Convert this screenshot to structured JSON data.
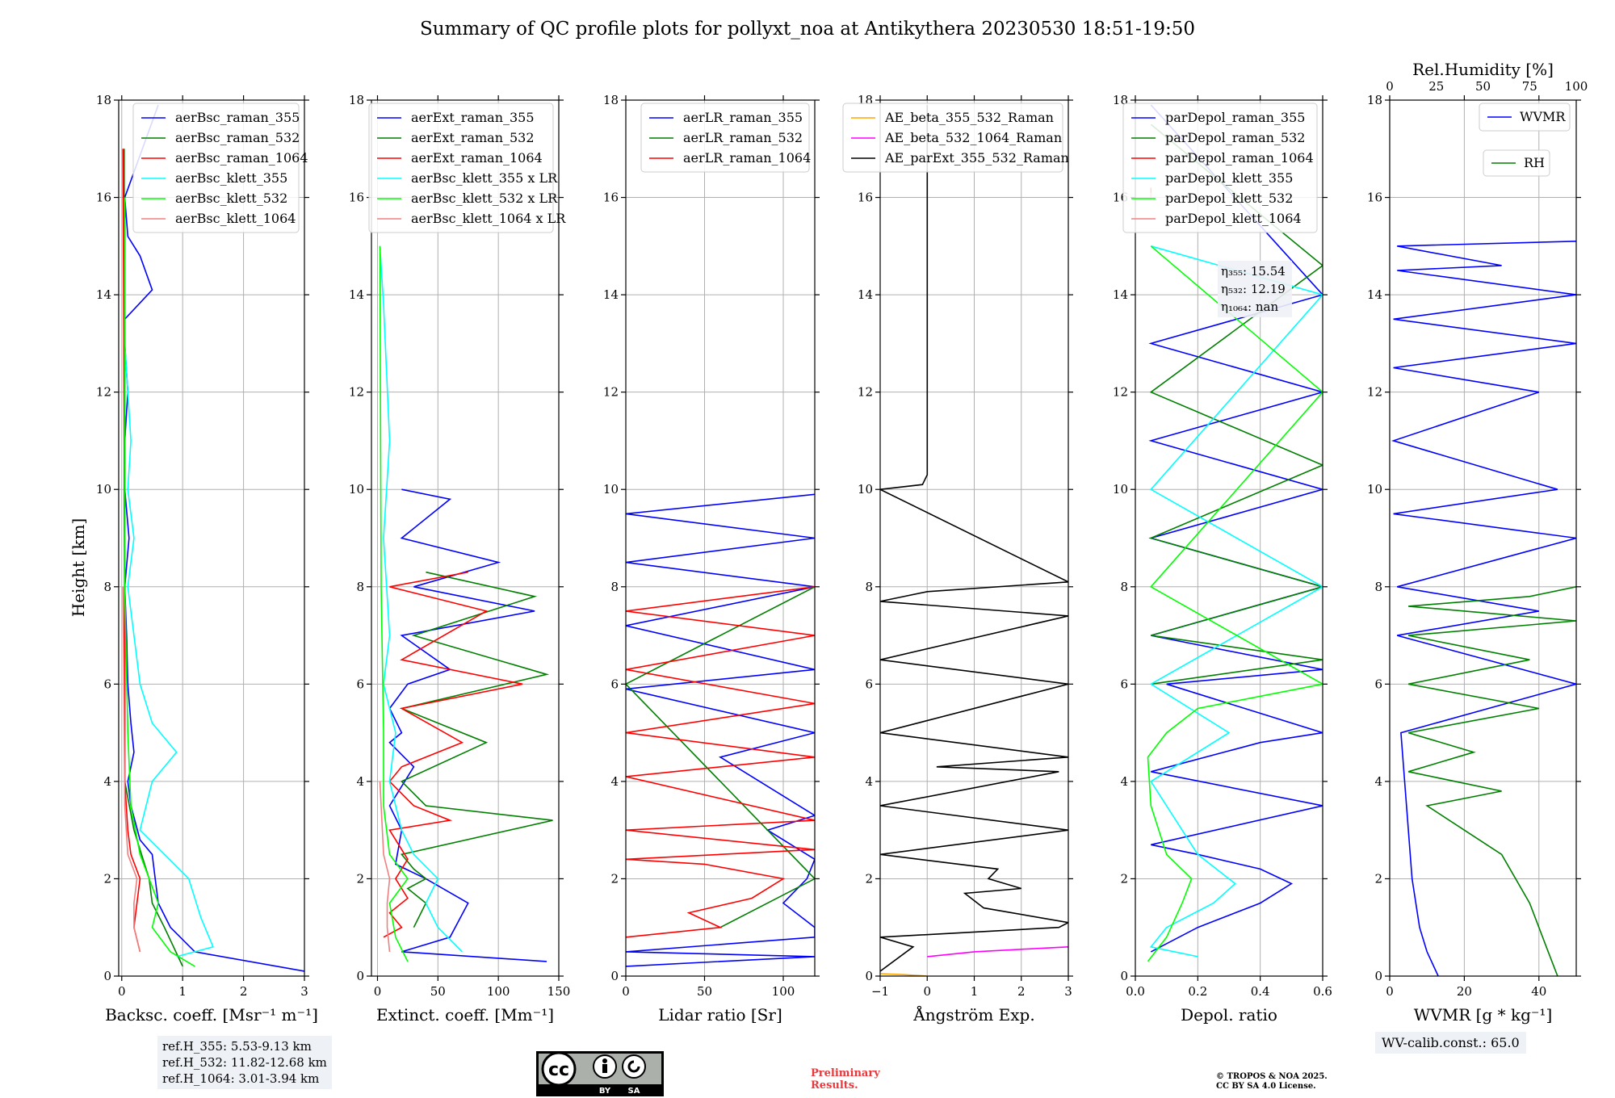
{
  "title": "Summary of QC profile plots for pollyxt_noa at Antikythera 20230530 18:51-19:50",
  "y_label": "Height [km]",
  "y_range": [
    0,
    18
  ],
  "y_ticks": [
    "0",
    "2",
    "4",
    "6",
    "8",
    "10",
    "12",
    "14",
    "16",
    "18"
  ],
  "colors": {
    "blue": "#0000ff",
    "green": "#007f00",
    "red": "#ff0000",
    "cyan": "#00ffff",
    "lime": "#00ff00",
    "salmon": "#f08080",
    "orange": "#ffa500",
    "magenta": "#ff00ff",
    "black": "#000000",
    "rh_green": "#008000"
  },
  "chart_data": [
    {
      "type": "line",
      "xlabel": "Backsc. coeff. [Msr⁻¹ m⁻¹]",
      "xlim": [
        -0.05,
        3
      ],
      "xticks": [
        0,
        1,
        2,
        3
      ],
      "xticklabels": [
        "0",
        "1",
        "2",
        "3"
      ],
      "legend": "top-right",
      "series": [
        {
          "name": "aerBsc_raman_355",
          "color": "#0000ff",
          "x": [
            3.0,
            1.2,
            0.8,
            0.6,
            0.55,
            0.5,
            0.3,
            0.15,
            0.1,
            0.2,
            0.15,
            0.1,
            0.08,
            0.05,
            0.12,
            0.05,
            0.05,
            0.1,
            0.05,
            0.05,
            0.5,
            0.3,
            0.1,
            0.05,
            0.6
          ],
          "y": [
            0.1,
            0.5,
            1.0,
            1.5,
            2.0,
            2.5,
            2.8,
            3.5,
            4.0,
            4.6,
            5.2,
            6.0,
            7.0,
            8.0,
            9.0,
            10.0,
            11.0,
            12.0,
            13.0,
            13.5,
            14.1,
            14.8,
            15.2,
            16.0,
            17.9
          ]
        },
        {
          "name": "aerBsc_raman_532",
          "color": "#007f00",
          "x": [
            1.0,
            0.7,
            0.5,
            0.45,
            0.3,
            0.2,
            0.05,
            0.05,
            0.04,
            0.04
          ],
          "y": [
            0.2,
            1.0,
            1.5,
            2.0,
            2.6,
            3.0,
            4.0,
            6.0,
            10.0,
            17.0
          ]
        },
        {
          "name": "aerBsc_raman_1064",
          "color": "#ff0000",
          "x": [
            0.3,
            0.2,
            0.25,
            0.3,
            0.15,
            0.1,
            0.05,
            0.05,
            0.02
          ],
          "y": [
            0.5,
            1.0,
            1.5,
            2.0,
            2.5,
            3.0,
            4.0,
            8.0,
            17.0
          ]
        },
        {
          "name": "aerBsc_klett_355",
          "color": "#00ffff",
          "x": [
            0.9,
            1.5,
            1.3,
            1.1,
            0.7,
            0.3,
            0.5,
            0.9,
            0.5,
            0.3,
            0.2,
            0.1,
            0.2,
            0.1,
            0.15,
            0.05,
            0.05
          ],
          "y": [
            0.4,
            0.6,
            1.2,
            2.0,
            2.5,
            3.0,
            4.0,
            4.6,
            5.2,
            6.0,
            7.0,
            8.0,
            9.0,
            10.0,
            11.0,
            13.0,
            16.0
          ]
        },
        {
          "name": "aerBsc_klett_532",
          "color": "#00ff00",
          "x": [
            1.2,
            0.8,
            0.5,
            0.6,
            0.45,
            0.3,
            0.15,
            0.1,
            0.05,
            0.05
          ],
          "y": [
            0.2,
            0.5,
            1.0,
            1.5,
            2.0,
            2.5,
            3.5,
            5.0,
            8.0,
            16.0
          ]
        },
        {
          "name": "aerBsc_klett_1064",
          "color": "#f08080",
          "x": [
            0.3,
            0.2,
            0.2,
            0.25,
            0.1,
            0.05,
            0.02
          ],
          "y": [
            0.5,
            1.0,
            1.5,
            2.0,
            2.5,
            3.5,
            8.0
          ]
        }
      ]
    },
    {
      "type": "line",
      "xlabel": "Extinct. coeff. [Mm⁻¹]",
      "xlim": [
        -5,
        150
      ],
      "xticks": [
        0,
        50,
        100,
        150
      ],
      "xticklabels": [
        "0",
        "50",
        "100",
        "150"
      ],
      "legend": "top-right",
      "series": [
        {
          "name": "aerExt_raman_355",
          "color": "#0000ff",
          "x": [
            140,
            20,
            60,
            75,
            40,
            15,
            20,
            10,
            30,
            10,
            20,
            10,
            25,
            60,
            20,
            130,
            30,
            100,
            20,
            60,
            20
          ],
          "y": [
            0.3,
            0.5,
            0.8,
            1.5,
            2.0,
            2.3,
            3.0,
            3.5,
            4.3,
            4.8,
            5.0,
            5.5,
            6.0,
            6.3,
            7.0,
            7.5,
            8.0,
            8.5,
            9.0,
            9.8,
            10.0
          ]
        },
        {
          "name": "aerExt_raman_532",
          "color": "#007f00",
          "x": [
            30,
            40,
            25,
            40,
            30,
            20,
            145,
            40,
            20,
            90,
            20,
            140,
            30,
            130,
            40
          ],
          "y": [
            1.0,
            1.5,
            1.8,
            2.0,
            2.2,
            2.5,
            3.2,
            3.5,
            4.0,
            4.8,
            5.5,
            6.2,
            7.0,
            7.8,
            8.3
          ]
        },
        {
          "name": "aerExt_raman_1064",
          "color": "#ff0000",
          "x": [
            5,
            20,
            10,
            25,
            15,
            25,
            10,
            60,
            30,
            10,
            20,
            70,
            20,
            120,
            20,
            90,
            10,
            75
          ],
          "y": [
            0.8,
            1.0,
            1.3,
            1.6,
            2.0,
            2.4,
            3.0,
            3.2,
            3.5,
            4.0,
            4.3,
            4.8,
            5.5,
            6.0,
            6.5,
            7.5,
            8.0,
            8.3
          ]
        },
        {
          "name": "aerBsc_klett_355 x LR",
          "color": "#00ffff",
          "x": [
            70,
            50,
            40,
            50,
            30,
            20,
            10,
            15,
            5,
            10,
            5,
            10,
            5,
            2
          ],
          "y": [
            0.5,
            1.0,
            1.5,
            2.0,
            2.5,
            3.0,
            4.0,
            5.0,
            6.0,
            7.0,
            9.0,
            11.0,
            13.8,
            15.0
          ]
        },
        {
          "name": "aerBsc_klett_532 x LR",
          "color": "#00ff00",
          "x": [
            25,
            15,
            10,
            25,
            10,
            5,
            5,
            3,
            2
          ],
          "y": [
            0.3,
            0.8,
            1.5,
            2.0,
            2.5,
            3.5,
            5.0,
            8.0,
            15.0
          ]
        },
        {
          "name": "aerBsc_klett_1064 x LR",
          "color": "#f08080",
          "x": [
            10,
            8,
            8,
            10,
            5,
            2
          ],
          "y": [
            0.5,
            1.0,
            1.5,
            2.0,
            2.5,
            4.0
          ]
        }
      ]
    },
    {
      "type": "line",
      "xlabel": "Lidar ratio [Sr]",
      "xlim": [
        0,
        120
      ],
      "xticks": [
        0,
        50,
        100
      ],
      "xticklabels": [
        "0",
        "50",
        "100"
      ],
      "legend": "top-right",
      "series": [
        {
          "name": "aerLR_raman_355",
          "color": "#0000ff",
          "x": [
            0,
            120,
            0,
            120,
            120,
            100,
            115,
            120,
            90,
            120,
            60,
            120,
            0,
            120,
            0,
            120,
            0,
            120,
            0,
            120
          ],
          "y": [
            0.2,
            0.4,
            0.5,
            0.8,
            1.0,
            1.5,
            2.0,
            2.4,
            3.0,
            3.3,
            4.5,
            5.0,
            5.9,
            6.3,
            7.2,
            8.0,
            8.5,
            9.0,
            9.5,
            9.9
          ]
        },
        {
          "name": "aerLR_raman_532",
          "color": "#007f00",
          "x": [
            60,
            90,
            120,
            0,
            120
          ],
          "y": [
            1.0,
            1.5,
            2.0,
            6.0,
            8.0
          ]
        },
        {
          "name": "aerLR_raman_1064",
          "color": "#ff0000",
          "x": [
            0,
            60,
            40,
            80,
            100,
            50,
            0,
            120,
            0,
            120,
            0,
            120,
            0,
            120,
            0,
            120,
            0,
            120
          ],
          "y": [
            0.8,
            1.0,
            1.3,
            1.6,
            2.0,
            2.3,
            2.4,
            2.6,
            3.0,
            3.2,
            4.1,
            4.5,
            5.0,
            5.6,
            6.3,
            7.0,
            7.5,
            8.0
          ]
        }
      ]
    },
    {
      "type": "line",
      "xlabel": "Ångström Exp.",
      "xlim": [
        -1,
        3
      ],
      "xticks": [
        -1,
        0,
        1,
        2,
        3
      ],
      "xticklabels": [
        "−1",
        "0",
        "1",
        "2",
        "3"
      ],
      "legend": "top-right",
      "series": [
        {
          "name": "AE_beta_355_532_Raman",
          "color": "#ffa500",
          "x": [
            -1.0,
            -0.5,
            0.0
          ],
          "y": [
            0.05,
            0.03,
            0.0
          ]
        },
        {
          "name": "AE_beta_532_1064_Raman",
          "color": "#ff00ff",
          "x": [
            0.0,
            1.0,
            2.0,
            3.0
          ],
          "y": [
            0.4,
            0.5,
            0.55,
            0.6
          ]
        },
        {
          "name": "AE_parExt_355_532_Raman",
          "color": "#000000",
          "x": [
            -1.0,
            -0.3,
            -1.0,
            2.8,
            3.0,
            1.2,
            0.8,
            2.0,
            1.3,
            1.5,
            -1.0,
            3.0,
            -1.0,
            2.8,
            0.2,
            3.0,
            -1.0,
            3.0,
            -1.0,
            3.0,
            -1.0,
            0.0,
            3.0,
            -1.0,
            -0.1,
            0.0,
            0.0
          ],
          "y": [
            0.1,
            0.6,
            0.8,
            1.0,
            1.1,
            1.4,
            1.7,
            1.8,
            2.0,
            2.2,
            2.5,
            3.0,
            3.5,
            4.2,
            4.3,
            4.5,
            5.0,
            6.0,
            6.5,
            7.4,
            7.7,
            7.9,
            8.1,
            10.0,
            10.1,
            10.3,
            17.9
          ]
        }
      ]
    },
    {
      "type": "line",
      "xlabel": "Depol. ratio",
      "xlim": [
        0,
        0.6
      ],
      "xticks": [
        0,
        0.2,
        0.4,
        0.6
      ],
      "xticklabels": [
        "0.0",
        "0.2",
        "0.4",
        "0.6"
      ],
      "legend": "top-right",
      "annotation": [
        "η₃₅₅: 15.54",
        "η₅₃₂: 12.19",
        "η₁₀₆₄: nan"
      ],
      "series": [
        {
          "name": "parDepol_raman_355",
          "color": "#0000ff",
          "x": [
            0.05,
            0.2,
            0.4,
            0.5,
            0.4,
            0.2,
            0.05,
            0.6,
            0.05,
            0.4,
            0.6,
            0.1,
            0.6,
            0.05,
            0.6,
            0.05,
            0.6,
            0.05,
            0.6,
            0.05,
            0.6,
            0.05
          ],
          "y": [
            0.5,
            1.0,
            1.5,
            1.9,
            2.2,
            2.5,
            2.7,
            3.5,
            4.2,
            4.8,
            5.0,
            6.0,
            6.3,
            7.0,
            8.0,
            9.0,
            10.0,
            11.0,
            12.0,
            13.0,
            14.0,
            17.9
          ]
        },
        {
          "name": "parDepol_raman_532",
          "color": "#007f00",
          "x": [
            0.05,
            0.6,
            0.05,
            0.6,
            0.05,
            0.6,
            0.05,
            0.6,
            0.05
          ],
          "y": [
            6.0,
            6.5,
            7.0,
            8.0,
            9.0,
            10.5,
            12.0,
            14.6,
            17.5
          ]
        },
        {
          "name": "parDepol_raman_1064",
          "color": "#ff0000",
          "x": [
            0.05,
            0.05
          ],
          "y": [
            16.0,
            16.2
          ]
        },
        {
          "name": "parDepol_klett_355",
          "color": "#00ffff",
          "x": [
            0.2,
            0.05,
            0.1,
            0.25,
            0.32,
            0.2,
            0.05,
            0.3,
            0.05,
            0.6,
            0.05,
            0.6,
            0.05
          ],
          "y": [
            0.4,
            0.6,
            1.0,
            1.5,
            1.9,
            2.5,
            4.0,
            5.0,
            6.0,
            8.0,
            10.0,
            14.0,
            15.0
          ]
        },
        {
          "name": "parDepol_klett_532",
          "color": "#00ff00",
          "x": [
            0.04,
            0.1,
            0.15,
            0.18,
            0.1,
            0.05,
            0.04,
            0.1,
            0.2,
            0.6,
            0.05,
            0.6,
            0.05
          ],
          "y": [
            0.3,
            0.8,
            1.5,
            2.0,
            2.5,
            3.5,
            4.5,
            5.0,
            5.5,
            6.0,
            8.0,
            12.0,
            15.0
          ]
        },
        {
          "name": "parDepol_klett_1064",
          "color": "#f08080",
          "x": [
            0.05,
            0.05
          ],
          "y": [
            16.0,
            16.1
          ]
        }
      ]
    },
    {
      "type": "line",
      "xlabel": "WVMR [g * kg⁻¹]",
      "xlim": [
        0,
        50
      ],
      "xticks": [
        0,
        20,
        40
      ],
      "xticklabels": [
        "0",
        "20",
        "40"
      ],
      "x2label": "Rel.Humidity [%]",
      "x2lim": [
        0,
        100
      ],
      "x2ticks": [
        0,
        25,
        50,
        75,
        100
      ],
      "x2ticklabels": [
        "0",
        "25",
        "50",
        "75",
        "100"
      ],
      "legend": "top-right",
      "annotation": [
        "WV-calib.const.: 65.0"
      ],
      "series": [
        {
          "name": "WVMR",
          "color": "#0000ff",
          "x": [
            13,
            10,
            8,
            6,
            5,
            4,
            3,
            50,
            2,
            40,
            2,
            50,
            1,
            45,
            1,
            40,
            1,
            50,
            1,
            50,
            2,
            30,
            2,
            50
          ],
          "y": [
            0.0,
            0.5,
            1.0,
            2.0,
            3.0,
            4.0,
            5.0,
            6.0,
            7.0,
            7.5,
            8.0,
            9.0,
            9.5,
            10.0,
            11.0,
            12.0,
            12.5,
            13.0,
            13.5,
            14.0,
            14.5,
            14.6,
            15.0,
            15.1
          ]
        },
        {
          "name": "RH",
          "color": "#008000",
          "x": [
            90,
            85,
            75,
            60,
            40,
            20,
            60,
            10,
            45,
            10,
            80,
            10,
            75,
            10,
            100,
            10,
            75,
            100
          ],
          "y": [
            0.0,
            0.5,
            1.5,
            2.5,
            3.0,
            3.5,
            3.8,
            4.2,
            4.6,
            5.0,
            5.5,
            6.0,
            6.5,
            7.0,
            7.3,
            7.6,
            7.8,
            8.0
          ]
        }
      ]
    }
  ],
  "ref_heights": [
    "ref.H_355: 5.53-9.13 km",
    "ref.H_532: 11.82-12.68 km",
    "ref.H_1064: 3.01-3.94 km"
  ],
  "wv_calib": "WV-calib.const.: 65.0",
  "preliminary": [
    "Preliminary",
    "Results."
  ],
  "copyright": [
    "© TROPOS & NOA 2025.",
    "CC BY SA 4.0 License."
  ],
  "cc_logo": {
    "letters": "cc",
    "by": "BY",
    "sa": "SA"
  }
}
